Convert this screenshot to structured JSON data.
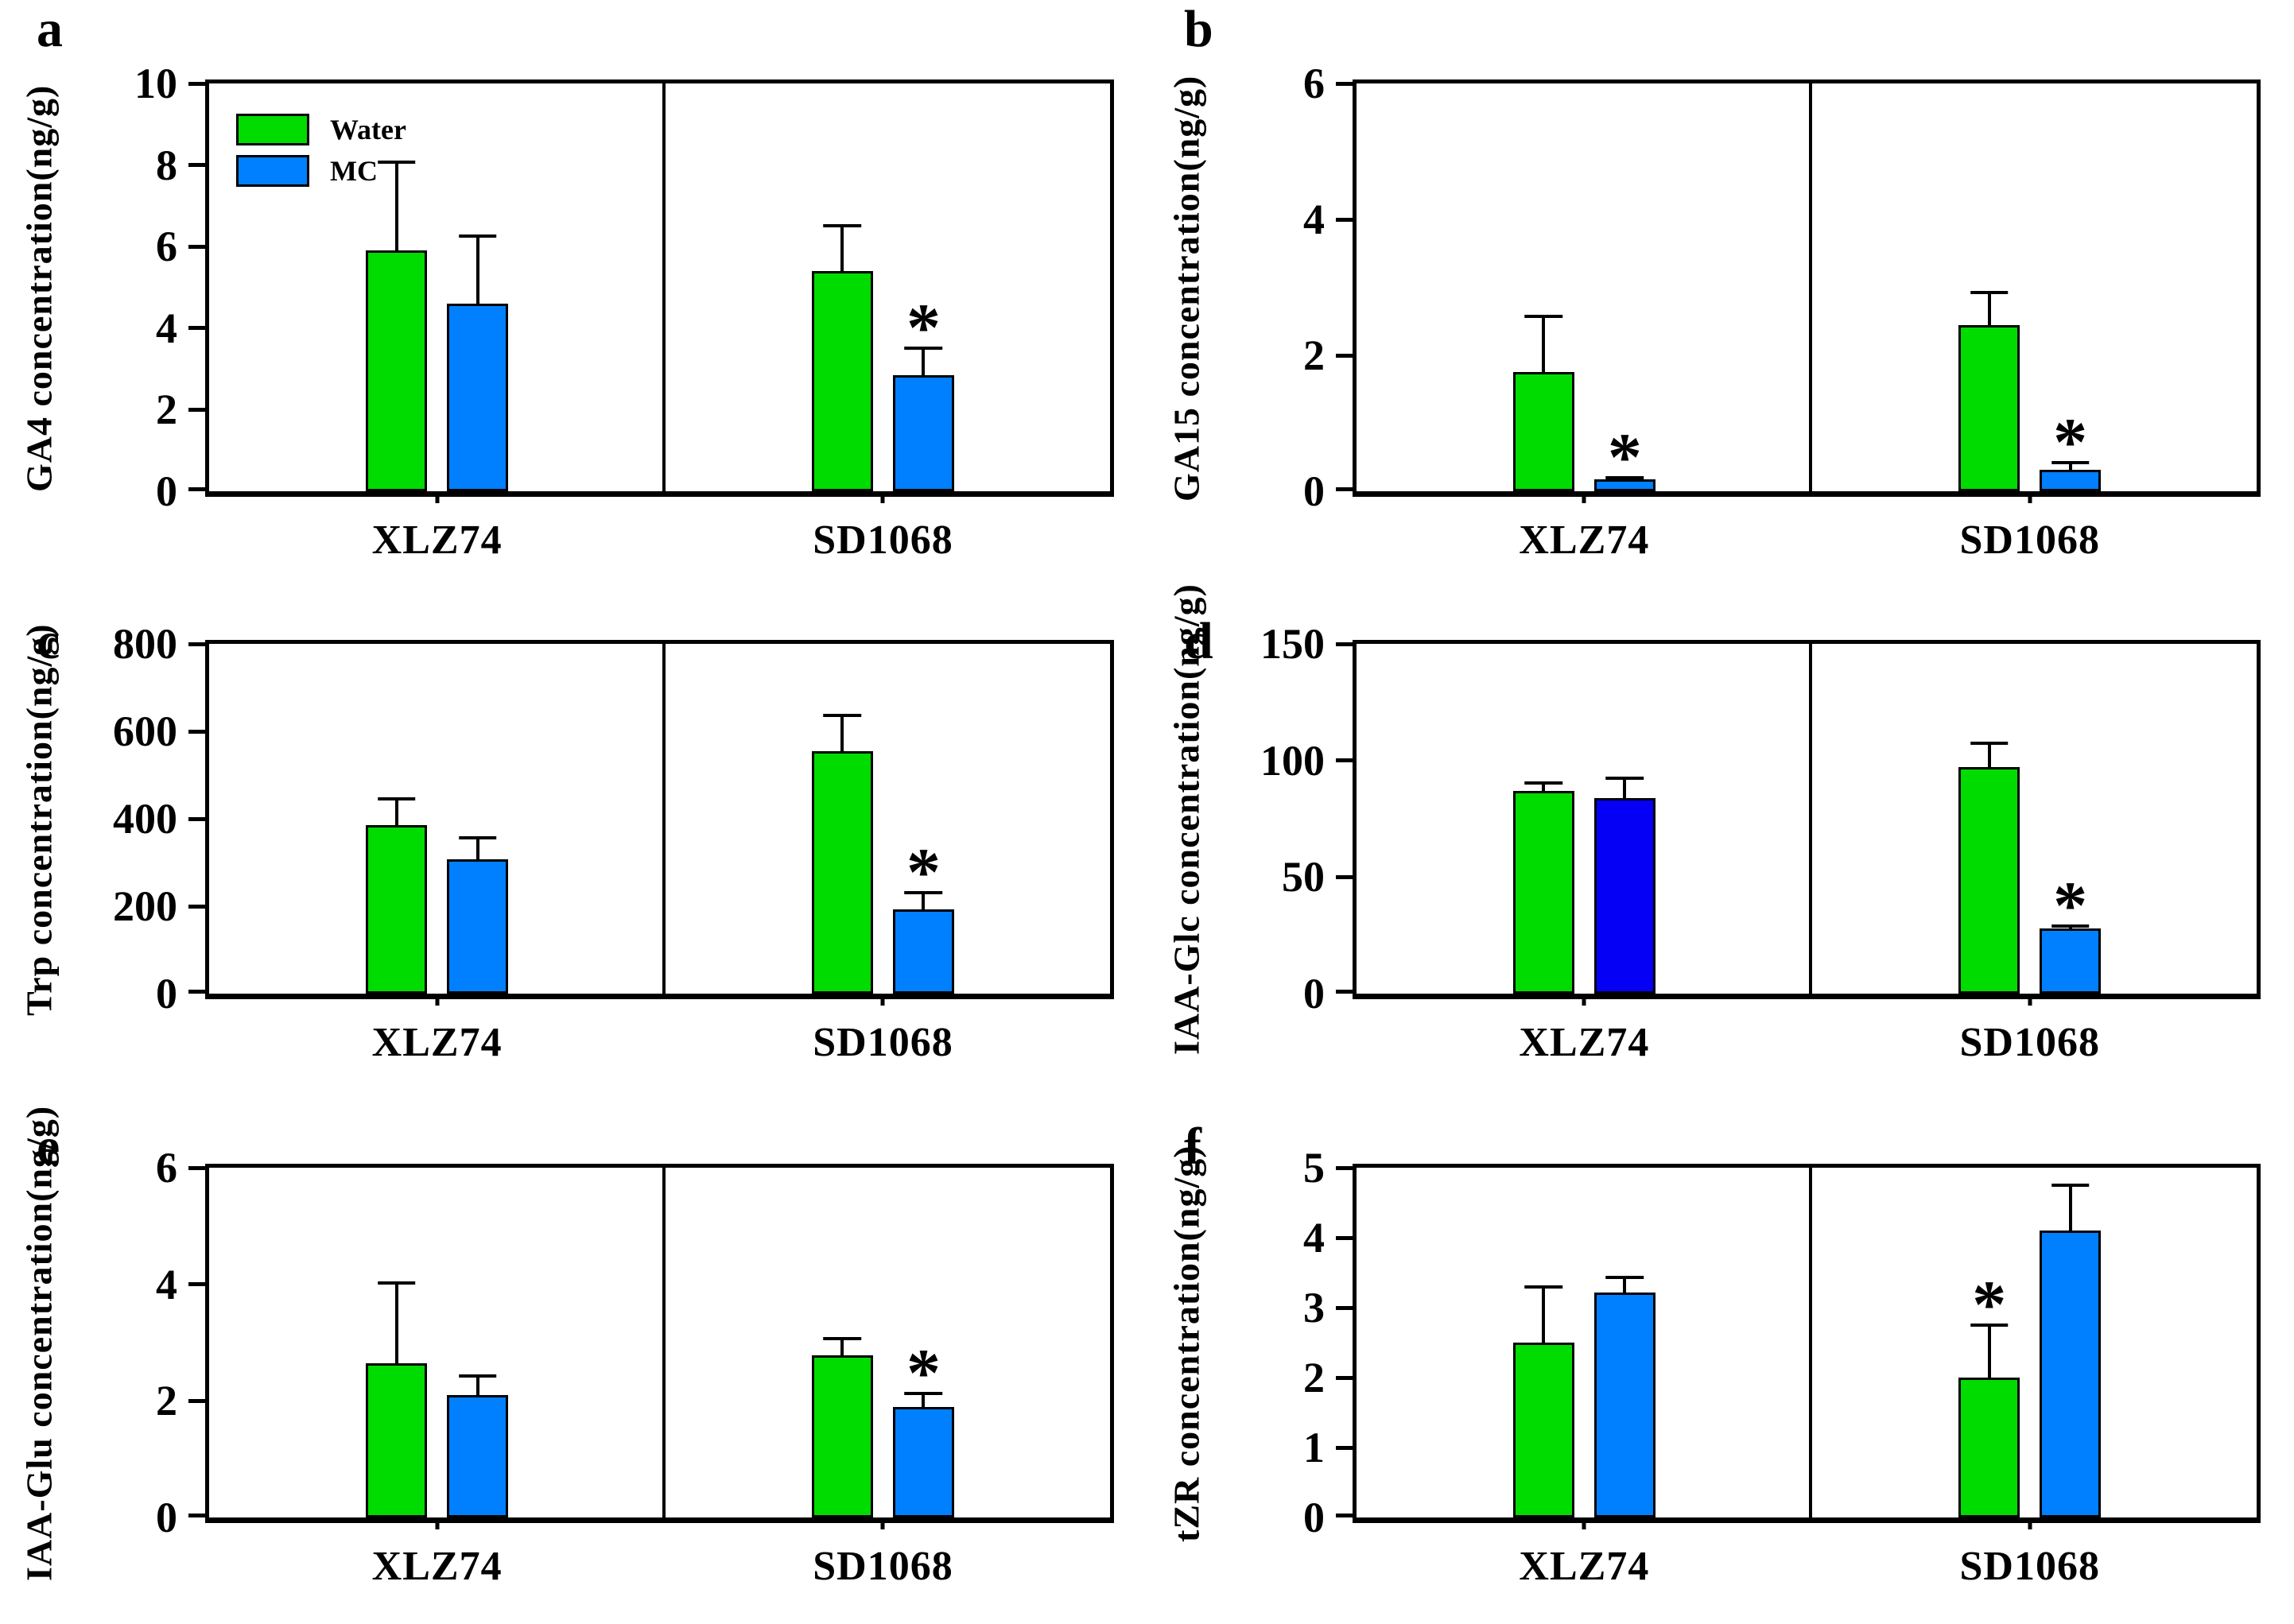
{
  "sig_symbol": "*",
  "legend": {
    "items": [
      {
        "label": "Water",
        "color": "#00DC00"
      },
      {
        "label": "MC",
        "color": "#0080FF"
      }
    ]
  },
  "groups": [
    "XLZ74",
    "SD1068"
  ],
  "chart_data": [
    {
      "type": "bar",
      "letter": "a",
      "ylabel": "GA4 concentration(ng/g)",
      "ylim": [
        0,
        10
      ],
      "yticks": [
        0,
        2,
        4,
        6,
        8,
        10
      ],
      "grid": false,
      "legend_position": "top-left-inside",
      "show_legend": true,
      "categories": [
        "XLZ74",
        "SD1068"
      ],
      "series": [
        {
          "name": "Water",
          "color": "#00DC00",
          "values": [
            5.9,
            5.4
          ],
          "error_tops": [
            8.1,
            6.55
          ],
          "sig": [
            false,
            false
          ]
        },
        {
          "name": "MC",
          "color": "#0080FF",
          "values": [
            4.6,
            2.85
          ],
          "error_tops": [
            6.3,
            3.55
          ],
          "sig": [
            false,
            true
          ]
        }
      ]
    },
    {
      "type": "bar",
      "letter": "b",
      "ylabel": "GA15 concentration(ng/g)",
      "ylim": [
        0,
        6
      ],
      "yticks": [
        0,
        2,
        4,
        6
      ],
      "grid": false,
      "show_legend": false,
      "categories": [
        "XLZ74",
        "SD1068"
      ],
      "series": [
        {
          "name": "Water",
          "color": "#00DC00",
          "values": [
            1.75,
            2.45
          ],
          "error_tops": [
            2.6,
            2.95
          ],
          "sig": [
            false,
            false
          ]
        },
        {
          "name": "MC",
          "color": "#0080FF",
          "values": [
            0.17,
            0.32
          ],
          "error_tops": [
            0.22,
            0.45
          ],
          "sig": [
            true,
            true
          ]
        }
      ]
    },
    {
      "type": "bar",
      "letter": "c",
      "ylabel": "Trp concentration(ng/g)",
      "ylim": [
        0,
        800
      ],
      "yticks": [
        0,
        200,
        400,
        600,
        800
      ],
      "grid": false,
      "show_legend": false,
      "categories": [
        "XLZ74",
        "SD1068"
      ],
      "series": [
        {
          "name": "Water",
          "color": "#00DC00",
          "values": [
            385,
            555
          ],
          "error_tops": [
            450,
            640
          ],
          "sig": [
            false,
            false
          ]
        },
        {
          "name": "MC",
          "color": "#0080FF",
          "values": [
            307,
            192
          ],
          "error_tops": [
            360,
            235
          ],
          "sig": [
            false,
            true
          ]
        }
      ]
    },
    {
      "type": "bar",
      "letter": "d",
      "ylabel": "IAA-Glc concentration(ng/g)",
      "ylim": [
        0,
        150
      ],
      "yticks": [
        0,
        50,
        100,
        150
      ],
      "grid": false,
      "show_legend": false,
      "categories": [
        "XLZ74",
        "SD1068"
      ],
      "series": [
        {
          "name": "Water",
          "color": "#00DC00",
          "values": [
            87,
            97
          ],
          "error_tops": [
            91,
            108
          ],
          "sig": [
            false,
            false
          ]
        },
        {
          "name": "MC",
          "color": "#0080FF",
          "colors": [
            "#0500F5",
            "#0080FF"
          ],
          "values": [
            84,
            28
          ],
          "error_tops": [
            93,
            29.5
          ],
          "sig": [
            false,
            true
          ]
        }
      ]
    },
    {
      "type": "bar",
      "letter": "e",
      "ylabel": "IAA-Glu concentration(ng/g)",
      "ylim": [
        0,
        6
      ],
      "yticks": [
        0,
        2,
        4,
        6
      ],
      "grid": false,
      "show_legend": false,
      "categories": [
        "XLZ74",
        "SD1068"
      ],
      "series": [
        {
          "name": "Water",
          "color": "#00DC00",
          "values": [
            2.65,
            2.78
          ],
          "error_tops": [
            4.05,
            3.1
          ],
          "sig": [
            false,
            false
          ]
        },
        {
          "name": "MC",
          "color": "#0080FF",
          "values": [
            2.1,
            1.9
          ],
          "error_tops": [
            2.45,
            2.15
          ],
          "sig": [
            false,
            true
          ]
        }
      ]
    },
    {
      "type": "bar",
      "letter": "f",
      "ylabel": "tZR concentration(ng/g)",
      "ylim": [
        0,
        5
      ],
      "yticks": [
        0,
        1,
        2,
        3,
        4,
        5
      ],
      "grid": false,
      "show_legend": false,
      "categories": [
        "XLZ74",
        "SD1068"
      ],
      "series": [
        {
          "name": "Water",
          "color": "#00DC00",
          "values": [
            2.5,
            2.0
          ],
          "error_tops": [
            3.32,
            2.77
          ],
          "sig": [
            false,
            true
          ]
        },
        {
          "name": "MC",
          "color": "#0080FF",
          "values": [
            3.22,
            4.1
          ],
          "error_tops": [
            3.45,
            4.77
          ],
          "sig": [
            false,
            false
          ]
        }
      ]
    }
  ]
}
